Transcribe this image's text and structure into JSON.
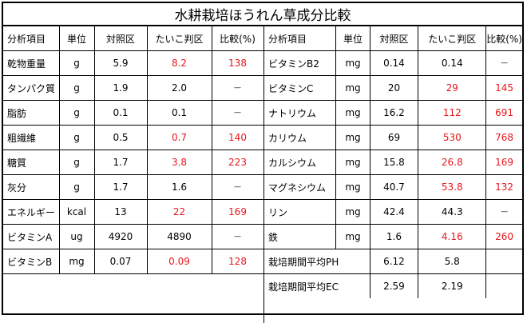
{
  "title": "水耕栽培ほうれん草成分比較",
  "headers": [
    "分析項目",
    "単位",
    "対照区",
    "たいこ判区",
    "比較(%)"
  ],
  "left_rows": [
    {
      "item": "乾物重量",
      "unit": "g",
      "control": "5.9",
      "taiko": "8.2",
      "ratio": "138",
      "highlight": true
    },
    {
      "item": "タンパク質",
      "unit": "g",
      "control": "1.9",
      "taiko": "2.0",
      "ratio": "—",
      "highlight": false
    },
    {
      "item": "脂肪",
      "unit": "g",
      "control": "0.1",
      "taiko": "0.1",
      "ratio": "—",
      "highlight": false
    },
    {
      "item": "粗繊維",
      "unit": "g",
      "control": "0.5",
      "taiko": "0.7",
      "ratio": "140",
      "highlight": true
    },
    {
      "item": "糖質",
      "unit": "g",
      "control": "1.7",
      "taiko": "3.8",
      "ratio": "223",
      "highlight": true
    },
    {
      "item": "灰分",
      "unit": "g",
      "control": "1.7",
      "taiko": "1.6",
      "ratio": "—",
      "highlight": false
    },
    {
      "item": "エネルギー",
      "unit": "kcal",
      "control": "13",
      "taiko": "22",
      "ratio": "169",
      "highlight": true
    },
    {
      "item": "ビタミンA",
      "unit": "ug",
      "control": "4920",
      "taiko": "4890",
      "ratio": "—",
      "highlight": false
    },
    {
      "item": "ビタミンB",
      "unit": "mg",
      "control": "0.07",
      "taiko": "0.09",
      "ratio": "128",
      "highlight": true
    }
  ],
  "right_rows": [
    {
      "item": "ビタミンB2",
      "unit": "mg",
      "control": "0.14",
      "taiko": "0.14",
      "ratio": "—",
      "highlight": false
    },
    {
      "item": "ビタミンC",
      "unit": "mg",
      "control": "20",
      "taiko": "29",
      "ratio": "145",
      "highlight": true
    },
    {
      "item": "ナトリウム",
      "unit": "mg",
      "control": "16.2",
      "taiko": "112",
      "ratio": "691",
      "highlight": true
    },
    {
      "item": "カリウム",
      "unit": "mg",
      "control": "69",
      "taiko": "530",
      "ratio": "768",
      "highlight": true
    },
    {
      "item": "カルシウム",
      "unit": "mg",
      "control": "15.8",
      "taiko": "26.8",
      "ratio": "169",
      "highlight": true
    },
    {
      "item": "マグネシウム",
      "unit": "mg",
      "control": "40.7",
      "taiko": "53.8",
      "ratio": "132",
      "highlight": true
    },
    {
      "item": "リン",
      "unit": "mg",
      "control": "42.4",
      "taiko": "44.3",
      "ratio": "—",
      "highlight": false
    },
    {
      "item": "鉄",
      "unit": "mg",
      "control": "1.6",
      "taiko": "4.16",
      "ratio": "260",
      "highlight": true
    }
  ],
  "extra_rows": [
    {
      "item": "栽培期間平均PH",
      "control": "6.12",
      "taiko": "5.8"
    },
    {
      "item": "栽培期間平均EC",
      "control": "2.59",
      "taiko": "2.19"
    }
  ],
  "colors": {
    "highlight": "#e8161c",
    "border": "#000000",
    "text": "#000000"
  }
}
